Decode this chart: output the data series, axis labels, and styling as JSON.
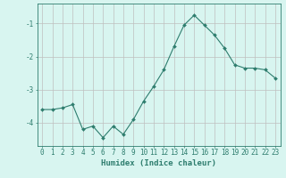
{
  "x": [
    0,
    1,
    2,
    3,
    4,
    5,
    6,
    7,
    8,
    9,
    10,
    11,
    12,
    13,
    14,
    15,
    16,
    17,
    18,
    19,
    20,
    21,
    22,
    23
  ],
  "y": [
    -3.6,
    -3.6,
    -3.55,
    -3.45,
    -4.2,
    -4.1,
    -4.45,
    -4.1,
    -4.35,
    -3.9,
    -3.35,
    -2.9,
    -2.4,
    -1.7,
    -1.05,
    -0.75,
    -1.05,
    -1.35,
    -1.75,
    -2.25,
    -2.35,
    -2.35,
    -2.4,
    -2.65
  ],
  "line_color": "#2e7d6e",
  "marker": "D",
  "marker_size": 2,
  "bg_color": "#d8f5f0",
  "grid_color": "#bfbfbf",
  "axis_color": "#2e7d6e",
  "xlabel": "Humidex (Indice chaleur)",
  "xlim": [
    -0.5,
    23.5
  ],
  "ylim": [
    -4.7,
    -0.4
  ],
  "yticks": [
    -4,
    -3,
    -2,
    -1
  ],
  "xticks": [
    0,
    1,
    2,
    3,
    4,
    5,
    6,
    7,
    8,
    9,
    10,
    11,
    12,
    13,
    14,
    15,
    16,
    17,
    18,
    19,
    20,
    21,
    22,
    23
  ],
  "tick_fontsize": 5.5,
  "label_fontsize": 6.5
}
